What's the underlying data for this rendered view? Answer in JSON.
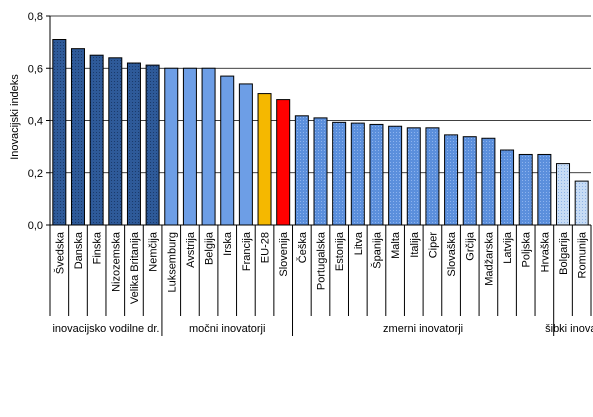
{
  "chart_data": {
    "type": "bar",
    "ylabel": "Inovacijski indeks",
    "ylim": [
      0,
      0.8
    ],
    "yticks": [
      "0,0",
      "0,2",
      "0,4",
      "0,6",
      "0,8"
    ],
    "grid": "horizontal",
    "categories": [
      "Švedska",
      "Danska",
      "Finska",
      "Nizozemska",
      "Velika Britanija",
      "Nemčija",
      "Luksemburg",
      "Avstrija",
      "Belgija",
      "Irska",
      "Francija",
      "EU-28",
      "Slovenija",
      "Češka",
      "Portugalska",
      "Estonija",
      "Litva",
      "Španija",
      "Malta",
      "Italija",
      "Ciper",
      "Slovaška",
      "Grčija",
      "Madžarska",
      "Latvija",
      "Poljska",
      "Hrvaška",
      "Bolgarija",
      "Romunija"
    ],
    "values": [
      0.71,
      0.675,
      0.65,
      0.64,
      0.62,
      0.612,
      0.6,
      0.6,
      0.6,
      0.57,
      0.54,
      0.503,
      0.48,
      0.418,
      0.41,
      0.393,
      0.39,
      0.385,
      0.378,
      0.372,
      0.372,
      0.345,
      0.338,
      0.332,
      0.287,
      0.27,
      0.27,
      0.235,
      0.168
    ],
    "bar_groups": [
      0,
      0,
      0,
      0,
      0,
      0,
      1,
      1,
      1,
      1,
      1,
      2,
      3,
      4,
      4,
      4,
      4,
      4,
      4,
      4,
      4,
      4,
      4,
      4,
      4,
      4,
      4,
      5,
      5
    ],
    "colors": [
      "#2e5a99",
      "#6d9ee6",
      "#f5b800",
      "#ff0000",
      "#6d9ee6",
      "#c7dcf5"
    ],
    "groups": [
      {
        "label": "inovacijsko vodilne dr.",
        "start": 0,
        "end": 6
      },
      {
        "label": "močni inovatorji",
        "start": 6,
        "end": 13
      },
      {
        "label": "zmerni inovatorji",
        "start": 13,
        "end": 27
      },
      {
        "label": "šibki inovat",
        "start": 27,
        "end": 29
      }
    ]
  }
}
